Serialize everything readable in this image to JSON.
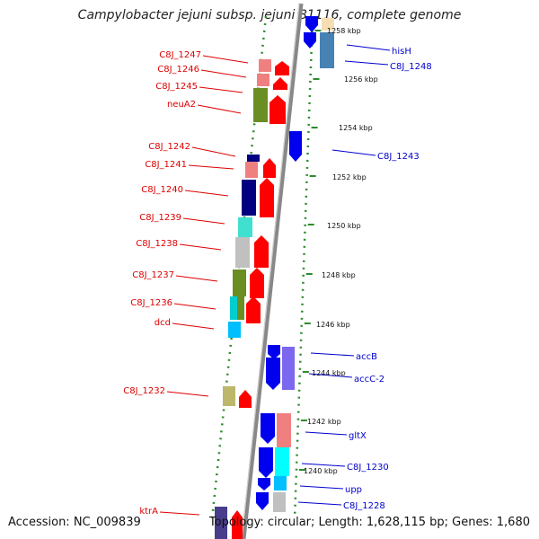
{
  "title": "Campylobacter jejuni subsp. jejuni 81116, complete genome",
  "accession": "Accession: NC_009839",
  "summary": "Topology: circular; Length: 1,628,115 bp; Genes: 1,680",
  "colors": {
    "label_left": "#dd0000",
    "label_right": "#0000cc",
    "backbone": "#888888",
    "dots": "#2e8b2e",
    "forward_arrow": "#ff0000",
    "reverse_arrow": "#0000ee"
  },
  "scale": {
    "unit": "kbp",
    "ticks": [
      "1258 kbp",
      "1256 kbp",
      "1254 kbp",
      "1252 kbp",
      "1250 kbp",
      "1248 kbp",
      "1246 kbp",
      "1244 kbp",
      "1242 kbp",
      "1240 kbp"
    ]
  },
  "genes_left": [
    "C8J_1247",
    "C8J_1246",
    "C8J_1245",
    "neuA2",
    "C8J_1242",
    "C8J_1241",
    "C8J_1240",
    "C8J_1239",
    "C8J_1238",
    "C8J_1237",
    "C8J_1236",
    "dcd",
    "C8J_1232",
    "ktrA"
  ],
  "genes_right": [
    "hisH",
    "C8J_1248",
    "C8J_1243",
    "accB",
    "accC-2",
    "gltX",
    "C8J_1230",
    "upp",
    "C8J_1228"
  ]
}
